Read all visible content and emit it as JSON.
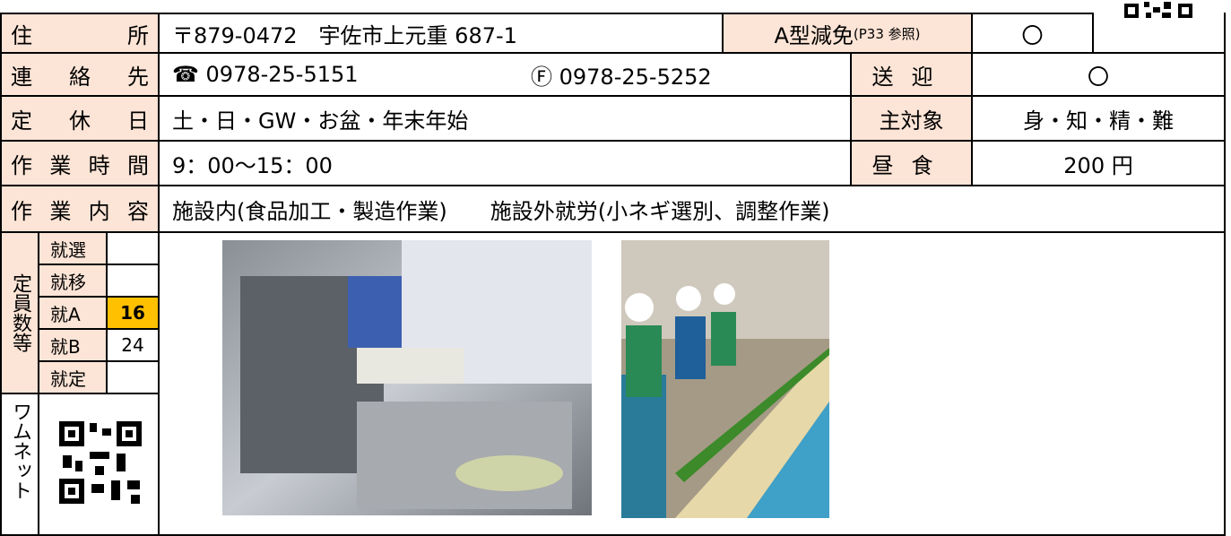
{
  "address": {
    "label": "住所",
    "value": "〒879-0472　宇佐市上元重 687-1",
    "a_type_label": "A型減免",
    "a_type_note": "(P33 参照)",
    "a_type_value": "〇"
  },
  "contact": {
    "label": "連絡先",
    "tel": "☎ 0978-25-5151",
    "fax": "Ⓕ 0978-25-5252",
    "pickup_label": "送迎",
    "pickup_value": "〇"
  },
  "holiday": {
    "label": "定休日",
    "value": "土・日・GW・お盆・年末年始",
    "target_label": "主対象",
    "target_value": "身・知・精・難"
  },
  "hours": {
    "label": "作業時間",
    "value": "9：00～15：00",
    "lunch_label": "昼食",
    "lunch_value": "200 円"
  },
  "work": {
    "label": "作業内容",
    "value": "施設内(食品加工・製造作業)　　施設外就労(小ネギ選別、調整作業)"
  },
  "capacity": {
    "label": "定員数等",
    "items": [
      {
        "name": "就選",
        "value": null
      },
      {
        "name": "就移",
        "value": null
      },
      {
        "name": "就A",
        "value": 16
      },
      {
        "name": "就B",
        "value": 24
      },
      {
        "name": "就定",
        "value": null
      }
    ]
  },
  "wamnet": {
    "label": "ワムネット"
  }
}
